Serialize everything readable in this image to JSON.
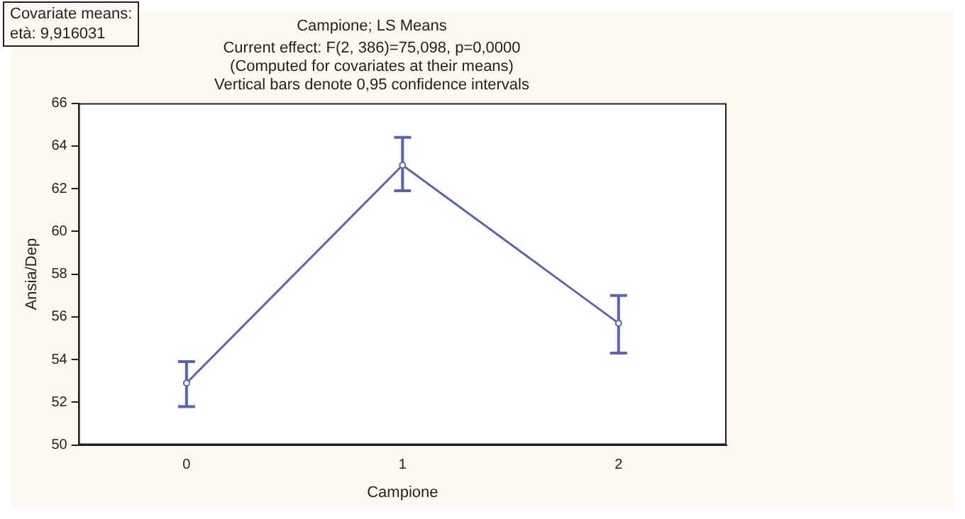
{
  "chart_data": {
    "type": "line",
    "title": "Campione; LS Means",
    "subtitle": "Current effect: F(2, 386)=75,098, p=0,0000\n(Computed for covariates at their means)\nVertical bars denote 0,95 confidence intervals",
    "xlabel": "Campione",
    "ylabel": "Ansia/Dep",
    "annotations": [
      "Covariate means:\netà: 9,916031"
    ],
    "categories": [
      "0",
      "1",
      "2"
    ],
    "series": [
      {
        "color": "#5a64b4",
        "values": [
          52.9,
          63.1,
          55.7
        ],
        "errors": [
          [
            51.8,
            53.9
          ],
          [
            61.9,
            64.4
          ],
          [
            54.3,
            57.0
          ]
        ]
      }
    ],
    "ylim": [
      50,
      66
    ],
    "yticks": [
      50,
      52,
      54,
      56,
      58,
      60,
      62,
      64,
      66
    ],
    "grid": false,
    "legend": false,
    "marker": "circle",
    "line_style": "solid"
  }
}
